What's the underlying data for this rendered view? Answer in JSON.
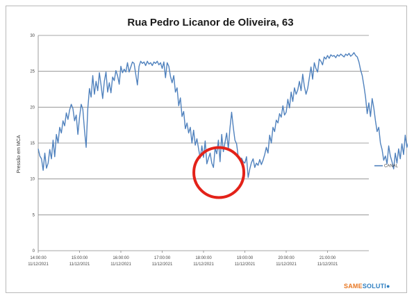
{
  "chart_data": {
    "type": "line",
    "title": "Rua Pedro Licanor de Oliveira, 63",
    "ylabel": "Pressão em MCA",
    "ylim": [
      0,
      30
    ],
    "yticks": [
      0,
      5,
      10,
      15,
      20,
      25,
      30
    ],
    "xlim": [
      0,
      200
    ],
    "x_tick_positions": [
      0,
      25,
      50,
      75,
      100,
      125,
      150,
      175
    ],
    "x_tick_labels": [
      [
        "14:00:00",
        "11/12/2021"
      ],
      [
        "15:00:00",
        "11/12/2021"
      ],
      [
        "16:00:00",
        "11/12/2021"
      ],
      [
        "17:00:00",
        "11/12/2021"
      ],
      [
        "18:00:00",
        "11/12/2021"
      ],
      [
        "19:00:00",
        "11/12/2021"
      ],
      [
        "20:00:00",
        "11/12/2021"
      ],
      [
        "21:00:00",
        "11/12/2021"
      ]
    ],
    "grid": true,
    "legend_position": "right",
    "series": [
      {
        "name": "CANAL",
        "color": "#4f81bd",
        "values": [
          14.2,
          13.2,
          12.8,
          11.2,
          13.6,
          11.5,
          12.2,
          14.1,
          12.8,
          15.4,
          13.1,
          16.2,
          15.0,
          17.2,
          16.4,
          18.1,
          17.4,
          19.2,
          18.3,
          19.6,
          20.4,
          19.8,
          18.1,
          18.9,
          16.2,
          18.6,
          20.4,
          19.7,
          16.8,
          14.4,
          19.8,
          22.6,
          21.4,
          24.4,
          21.8,
          23.6,
          22.3,
          24.8,
          23.1,
          21.2,
          23.6,
          24.9,
          22.1,
          23.4,
          22.0,
          24.2,
          23.7,
          25.1,
          24.4,
          23.2,
          25.7,
          24.8,
          25.3,
          24.9,
          26.2,
          24.9,
          25.6,
          26.3,
          26.1,
          24.6,
          23.1,
          25.7,
          26.4,
          26.1,
          26.3,
          25.8,
          26.4,
          26.0,
          26.2,
          25.8,
          26.3,
          26.1,
          26.4,
          25.9,
          26.2,
          25.4,
          26.3,
          24.1,
          26.2,
          25.7,
          24.3,
          23.4,
          24.4,
          22.1,
          22.7,
          20.2,
          21.3,
          18.7,
          19.4,
          17.0,
          17.8,
          16.4,
          17.2,
          15.0,
          16.8,
          14.7,
          15.6,
          14.2,
          12.9,
          14.6,
          13.0,
          15.3,
          12.1,
          12.9,
          13.6,
          12.2,
          11.6,
          14.3,
          13.5,
          15.4,
          12.4,
          16.2,
          13.8,
          15.1,
          16.4,
          14.2,
          17.1,
          19.3,
          17.2,
          15.4,
          14.9,
          13.1,
          12.6,
          12.9,
          12.4,
          12.2,
          13.1,
          10.2,
          11.4,
          12.3,
          12.8,
          11.6,
          12.2,
          11.9,
          12.7,
          12.0,
          12.6,
          13.4,
          14.4,
          13.6,
          16.1,
          15.0,
          17.2,
          16.6,
          18.2,
          17.8,
          19.1,
          18.6,
          20.2,
          18.9,
          19.3,
          21.1,
          19.9,
          22.1,
          20.8,
          22.7,
          21.8,
          22.4,
          23.6,
          22.3,
          24.6,
          22.9,
          21.8,
          22.6,
          24.1,
          25.6,
          23.9,
          26.2,
          25.4,
          24.9,
          26.7,
          26.4,
          25.9,
          27.0,
          26.7,
          27.2,
          26.8,
          27.3,
          27.1,
          27.2,
          26.9,
          27.3,
          27.1,
          27.4,
          27.2,
          27.0,
          27.4,
          27.2,
          27.5,
          27.1,
          27.3,
          27.6,
          27.2,
          27.0,
          26.3,
          25.2,
          24.4,
          23.0,
          21.4,
          19.1,
          20.6,
          18.7,
          21.2,
          19.9,
          18.1,
          16.6,
          17.2,
          15.0,
          14.1,
          12.6,
          13.2,
          12.1,
          14.6,
          13.2,
          12.4,
          11.4,
          13.6,
          12.2,
          14.2,
          12.8,
          14.9,
          13.4,
          16.1,
          14.4,
          15.2,
          16.9,
          15.2,
          15.9,
          16.4,
          17.0,
          15.6,
          16.6,
          17.2
        ]
      }
    ],
    "annotation": {
      "shape": "circle",
      "color": "#e32219",
      "at_x": 108,
      "at_y": 10.5
    }
  },
  "logo": {
    "part_a": "SAME",
    "part_b": "SOLUTI"
  },
  "colors": {
    "grid": "#868686",
    "axis": "#868686",
    "frame": "#b9b9b9"
  }
}
